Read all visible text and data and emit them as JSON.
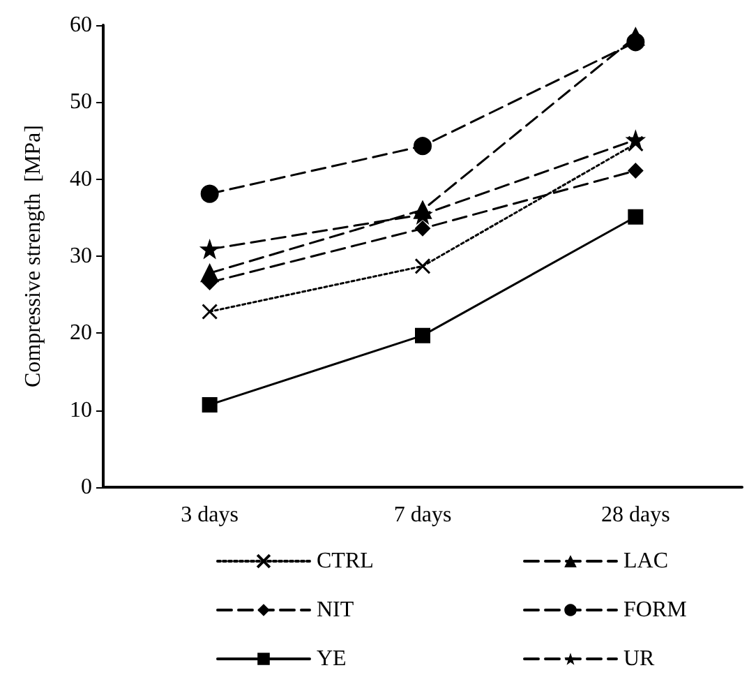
{
  "chart_data": {
    "type": "line",
    "ylabel": "Compressive strength  [MPa]",
    "categories": [
      "3 days",
      "7 days",
      "28 days"
    ],
    "ylim": [
      0,
      60
    ],
    "yticks": [
      0,
      10,
      20,
      30,
      40,
      50,
      60
    ],
    "grid": false,
    "legend": "bottom",
    "series": [
      {
        "name": "CTRL",
        "color": "#000000",
        "marker": "cross",
        "line_style": "dotted",
        "values": [
          22.8,
          28.7,
          44.6
        ]
      },
      {
        "name": "LAC",
        "color": "#000000",
        "marker": "triangle",
        "line_style": "dashed",
        "values": [
          27.8,
          36.0,
          58.5
        ]
      },
      {
        "name": "NIT",
        "color": "#000000",
        "marker": "diamond",
        "line_style": "dashed",
        "values": [
          26.6,
          33.6,
          41.1
        ]
      },
      {
        "name": "FORM",
        "color": "#000000",
        "marker": "circle",
        "line_style": "dashed",
        "values": [
          38.1,
          44.3,
          57.8
        ]
      },
      {
        "name": "YE",
        "color": "#000000",
        "marker": "square",
        "line_style": "solid",
        "values": [
          10.7,
          19.7,
          35.1
        ]
      },
      {
        "name": "UR",
        "color": "#000000",
        "marker": "star",
        "line_style": "dashed",
        "values": [
          30.9,
          35.4,
          45.1
        ]
      }
    ]
  }
}
